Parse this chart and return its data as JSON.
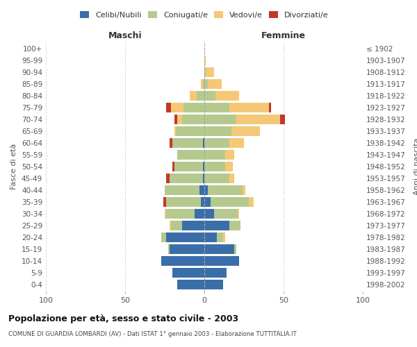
{
  "age_groups": [
    "0-4",
    "5-9",
    "10-14",
    "15-19",
    "20-24",
    "25-29",
    "30-34",
    "35-39",
    "40-44",
    "45-49",
    "50-54",
    "55-59",
    "60-64",
    "65-69",
    "70-74",
    "75-79",
    "80-84",
    "85-89",
    "90-94",
    "95-99",
    "100+"
  ],
  "birth_years": [
    "1998-2002",
    "1993-1997",
    "1988-1992",
    "1983-1987",
    "1978-1982",
    "1973-1977",
    "1968-1972",
    "1963-1967",
    "1958-1962",
    "1953-1957",
    "1948-1952",
    "1943-1947",
    "1938-1942",
    "1933-1937",
    "1928-1932",
    "1923-1927",
    "1918-1922",
    "1913-1917",
    "1908-1912",
    "1903-1907",
    "≤ 1902"
  ],
  "maschi": {
    "celibi": [
      17,
      20,
      27,
      22,
      24,
      14,
      6,
      2,
      3,
      1,
      1,
      0,
      1,
      0,
      0,
      0,
      0,
      0,
      0,
      0,
      0
    ],
    "coniugati": [
      0,
      0,
      0,
      1,
      3,
      7,
      18,
      22,
      22,
      21,
      18,
      17,
      19,
      18,
      14,
      13,
      5,
      1,
      0,
      0,
      0
    ],
    "vedovi": [
      0,
      0,
      0,
      0,
      0,
      1,
      1,
      0,
      0,
      0,
      0,
      0,
      0,
      1,
      3,
      8,
      4,
      1,
      0,
      0,
      0
    ],
    "divorziati": [
      0,
      0,
      0,
      0,
      0,
      0,
      0,
      2,
      0,
      2,
      1,
      0,
      2,
      0,
      2,
      3,
      0,
      0,
      0,
      0,
      0
    ]
  },
  "femmine": {
    "nubili": [
      12,
      14,
      22,
      19,
      8,
      16,
      6,
      4,
      2,
      0,
      0,
      0,
      0,
      0,
      0,
      0,
      0,
      0,
      0,
      0,
      0
    ],
    "coniugate": [
      0,
      0,
      0,
      1,
      4,
      7,
      15,
      24,
      22,
      16,
      13,
      13,
      16,
      17,
      20,
      16,
      7,
      2,
      1,
      0,
      0
    ],
    "vedove": [
      0,
      0,
      0,
      0,
      1,
      0,
      1,
      3,
      2,
      3,
      5,
      6,
      9,
      18,
      28,
      25,
      15,
      9,
      5,
      1,
      0
    ],
    "divorziate": [
      0,
      0,
      0,
      0,
      0,
      0,
      0,
      0,
      0,
      0,
      0,
      0,
      0,
      0,
      3,
      1,
      0,
      0,
      0,
      0,
      0
    ]
  },
  "colors": {
    "celibi_nubili": "#3a6ea8",
    "coniugati": "#b5c98e",
    "vedovi": "#f5c877",
    "divorziati": "#c0392b"
  },
  "xlim": 100,
  "title": "Popolazione per età, sesso e stato civile - 2003",
  "subtitle": "COMUNE DI GUARDIA LOMBARDI (AV) - Dati ISTAT 1° gennaio 2003 - Elaborazione TUTTITALIA.IT",
  "ylabel_left": "Fasce di età",
  "ylabel_right": "Anni di nascita",
  "xlabel_left": "Maschi",
  "xlabel_right": "Femmine",
  "background_color": "#ffffff",
  "grid_color": "#cccccc"
}
